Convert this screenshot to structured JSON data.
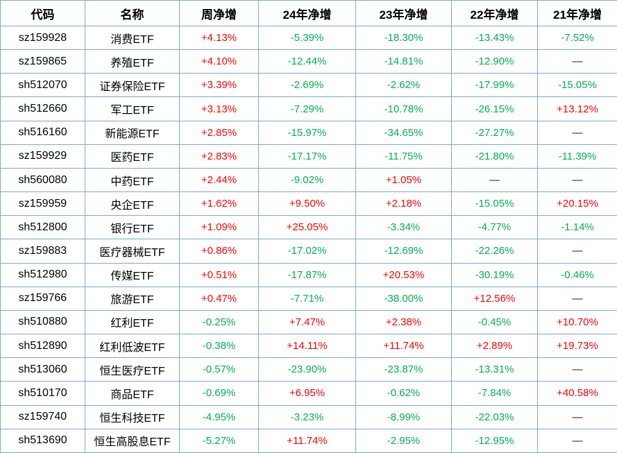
{
  "colors": {
    "positive": "#fe0000",
    "negative": "#00b050",
    "dash": "#1a1a1a",
    "border": "#7ba7d7",
    "headertext": "#000000"
  },
  "chart_data": {
    "type": "table",
    "headers": [
      "代码",
      "名称",
      "周净增",
      "24年净增",
      "23年净增",
      "22年净增",
      "21年净增"
    ],
    "rows": [
      {
        "code": "sz159928",
        "name": "消费ETF",
        "values": [
          "+4.13%",
          "-5.39%",
          "-18.30%",
          "-13.43%",
          "-7.52%"
        ]
      },
      {
        "code": "sz159865",
        "name": "养殖ETF",
        "values": [
          "+4.10%",
          "-12.44%",
          "-14.81%",
          "-12.90%",
          "—"
        ]
      },
      {
        "code": "sh512070",
        "name": "证券保险ETF",
        "values": [
          "+3.39%",
          "-2.69%",
          "-2.62%",
          "-17.99%",
          "-15.05%"
        ]
      },
      {
        "code": "sh512660",
        "name": "军工ETF",
        "values": [
          "+3.13%",
          "-7.29%",
          "-10.78%",
          "-26.15%",
          "+13.12%"
        ]
      },
      {
        "code": "sh516160",
        "name": "新能源ETF",
        "values": [
          "+2.85%",
          "-15.97%",
          "-34.65%",
          "-27.27%",
          "—"
        ]
      },
      {
        "code": "sz159929",
        "name": "医药ETF",
        "values": [
          "+2.83%",
          "-17.17%",
          "-11.75%",
          "-21.80%",
          "-11.39%"
        ]
      },
      {
        "code": "sh560080",
        "name": "中药ETF",
        "values": [
          "+2.44%",
          "-9.02%",
          "+1.05%",
          "—",
          "—"
        ]
      },
      {
        "code": "sz159959",
        "name": "央企ETF",
        "values": [
          "+1.62%",
          "+9.50%",
          "+2.18%",
          "-15.05%",
          "+20.15%"
        ]
      },
      {
        "code": "sh512800",
        "name": "银行ETF",
        "values": [
          "+1.09%",
          "+25.05%",
          "-3.34%",
          "-4.77%",
          "-1.14%"
        ]
      },
      {
        "code": "sz159883",
        "name": "医疗器械ETF",
        "values": [
          "+0.86%",
          "-17.02%",
          "-12.69%",
          "-22.26%",
          "—"
        ]
      },
      {
        "code": "sh512980",
        "name": "传媒ETF",
        "values": [
          "+0.51%",
          "-17.87%",
          "+20.53%",
          "-30.19%",
          "-0.46%"
        ]
      },
      {
        "code": "sz159766",
        "name": "旅游ETF",
        "values": [
          "+0.47%",
          "-7.71%",
          "-38.00%",
          "+12.56%",
          "—"
        ]
      },
      {
        "code": "sh510880",
        "name": "红利ETF",
        "values": [
          "-0.25%",
          "+7.47%",
          "+2.38%",
          "-0.45%",
          "+10.70%"
        ]
      },
      {
        "code": "sh512890",
        "name": "红利低波ETF",
        "values": [
          "-0.38%",
          "+14.11%",
          "+11.74%",
          "+2.89%",
          "+19.73%"
        ]
      },
      {
        "code": "sh513060",
        "name": "恒生医疗ETF",
        "values": [
          "-0.57%",
          "-23.90%",
          "-23.87%",
          "-13.31%",
          "—"
        ]
      },
      {
        "code": "sh510170",
        "name": "商品ETF",
        "values": [
          "-0.69%",
          "+6.95%",
          "-0.62%",
          "-7.84%",
          "+40.58%"
        ]
      },
      {
        "code": "sz159740",
        "name": "恒生科技ETF",
        "values": [
          "-4.95%",
          "-3.23%",
          "-8.99%",
          "-22.03%",
          "—"
        ]
      },
      {
        "code": "sh513690",
        "name": "恒生高股息ETF",
        "values": [
          "-5.27%",
          "+11.74%",
          "-2.95%",
          "-12.95%",
          "—"
        ]
      }
    ]
  }
}
